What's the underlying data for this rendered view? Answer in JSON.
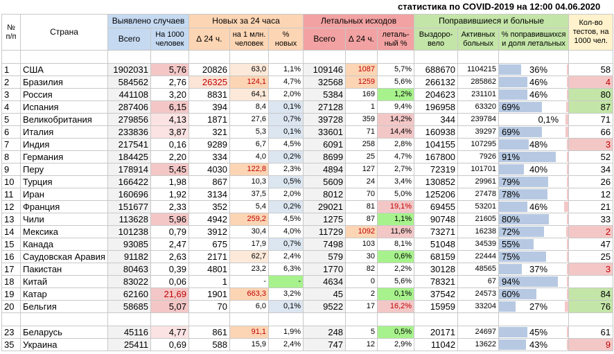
{
  "title": "статистика по COVID-2019 на 12:00 04.06.2020",
  "headers": {
    "no": "№ п/п",
    "country": "Страна",
    "detected": "Выявлено случаев",
    "detected_total": "Всего",
    "detected_per1000": "На 1000 человек",
    "new24": "Новых за 24 часа",
    "new_delta": "∆ 24 ч.",
    "new_per_mln": "на 1 млн. человек",
    "new_pct": "% новых",
    "deaths": "Летальных исходов",
    "deaths_total": "Всего",
    "deaths_delta": "∆ 24 ч.",
    "deaths_pct": "леталь-ный %",
    "recovered_group": "Поправившиеся и больные",
    "recovered": "Выздоро-вело",
    "active": "Активных больных",
    "recovered_pct": "% поправившихся и доля летальных",
    "tests": "Кол-во тестов, на 1000 чел."
  },
  "colors": {
    "detected_header": "#c5d9f1",
    "new_header": "#fcd5b4",
    "deaths_header": "#f2a2a2",
    "recovered_header": "#c4e5a8",
    "tests_header": "#fff2cc",
    "pink": "#f4c7c7",
    "green": "#c6efce",
    "bright_green": "#a7f28c",
    "blue_bar": "#b7c9e2"
  },
  "rows": [
    {
      "n": "1",
      "country": "США",
      "total": "1902031",
      "per1000": "5,76",
      "d24": "20826",
      "mln": "63,0",
      "pct": "1,1%",
      "deaths": "109146",
      "dd24": "1087",
      "lpct": "5,7%",
      "rec": "688670",
      "act": "1104215",
      "rpct": "36%",
      "rfrac": 0.36,
      "lfrac": 0.057,
      "tests": "58"
    },
    {
      "n": "2",
      "country": "Бразилия",
      "total": "584562",
      "per1000": "2,76",
      "d24": "26325",
      "mln": "124,1",
      "pct": "4,7%",
      "deaths": "32568",
      "dd24": "1259",
      "lpct": "5,6%",
      "rec": "266132",
      "act": "285862",
      "rpct": "46%",
      "rfrac": 0.46,
      "lfrac": 0.056,
      "tests": "4"
    },
    {
      "n": "3",
      "country": "Россия",
      "total": "441108",
      "per1000": "3,20",
      "d24": "8831",
      "mln": "64,1",
      "pct": "2,0%",
      "deaths": "5384",
      "dd24": "169",
      "lpct": "1,2%",
      "rec": "204623",
      "act": "231101",
      "rpct": "46%",
      "rfrac": 0.46,
      "lfrac": 0.012,
      "tests": "80"
    },
    {
      "n": "4",
      "country": "Испания",
      "total": "287406",
      "per1000": "6,15",
      "d24": "394",
      "mln": "8,4",
      "pct": "0,1%",
      "deaths": "27128",
      "dd24": "1",
      "lpct": "9,4%",
      "rec": "196958",
      "act": "63320",
      "rpct": "69%",
      "rfrac": 0.69,
      "lfrac": 0.094,
      "tests": "87"
    },
    {
      "n": "5",
      "country": "Великобритания",
      "total": "279856",
      "per1000": "4,13",
      "d24": "1871",
      "mln": "27,6",
      "pct": "0,7%",
      "deaths": "39728",
      "dd24": "359",
      "lpct": "14,2%",
      "rec": "344",
      "act": "239784",
      "rpct": "0,1%",
      "rfrac": 0.001,
      "lfrac": 0.142,
      "tests": "71"
    },
    {
      "n": "6",
      "country": "Италия",
      "total": "233836",
      "per1000": "3,87",
      "d24": "321",
      "mln": "5,3",
      "pct": "0,1%",
      "deaths": "33601",
      "dd24": "71",
      "lpct": "14,4%",
      "rec": "160938",
      "act": "39297",
      "rpct": "69%",
      "rfrac": 0.69,
      "lfrac": 0.144,
      "tests": "66"
    },
    {
      "n": "7",
      "country": "Индия",
      "total": "217541",
      "per1000": "0,16",
      "d24": "9289",
      "mln": "6,7",
      "pct": "4,5%",
      "deaths": "6091",
      "dd24": "258",
      "lpct": "2,8%",
      "rec": "104155",
      "act": "107295",
      "rpct": "48%",
      "rfrac": 0.48,
      "lfrac": 0.028,
      "tests": "3"
    },
    {
      "n": "8",
      "country": "Германия",
      "total": "184425",
      "per1000": "2,20",
      "d24": "334",
      "mln": "4,0",
      "pct": "0,2%",
      "deaths": "8699",
      "dd24": "25",
      "lpct": "4,7%",
      "rec": "167800",
      "act": "7926",
      "rpct": "91%",
      "rfrac": 0.91,
      "lfrac": 0.047,
      "tests": "52"
    },
    {
      "n": "9",
      "country": "Перу",
      "total": "178914",
      "per1000": "5,45",
      "d24": "4030",
      "mln": "122,8",
      "pct": "2,3%",
      "deaths": "4894",
      "dd24": "127",
      "lpct": "2,7%",
      "rec": "72319",
      "act": "101701",
      "rpct": "40%",
      "rfrac": 0.4,
      "lfrac": 0.027,
      "tests": "34"
    },
    {
      "n": "10",
      "country": "Турция",
      "total": "166422",
      "per1000": "1,98",
      "d24": "867",
      "mln": "10,3",
      "pct": "0,5%",
      "deaths": "5609",
      "dd24": "24",
      "lpct": "3,4%",
      "rec": "130852",
      "act": "29961",
      "rpct": "79%",
      "rfrac": 0.79,
      "lfrac": 0.034,
      "tests": "26"
    },
    {
      "n": "11",
      "country": "Иран",
      "total": "160696",
      "per1000": "1,92",
      "d24": "3134",
      "mln": "37,5",
      "pct": "2,0%",
      "deaths": "8012",
      "dd24": "70",
      "lpct": "5,0%",
      "rec": "125206",
      "act": "27478",
      "rpct": "78%",
      "rfrac": 0.78,
      "lfrac": 0.05,
      "tests": "12"
    },
    {
      "n": "12",
      "country": "Франция",
      "total": "151677",
      "per1000": "2,33",
      "d24": "352",
      "mln": "5,4",
      "pct": "0,2%",
      "deaths": "29021",
      "dd24": "81",
      "lpct": "19,1%",
      "rec": "69455",
      "act": "53201",
      "rpct": "46%",
      "rfrac": 0.46,
      "lfrac": 0.191,
      "tests": "21"
    },
    {
      "n": "13",
      "country": "Чили",
      "total": "113628",
      "per1000": "5,96",
      "d24": "4942",
      "mln": "259,2",
      "pct": "4,5%",
      "deaths": "1275",
      "dd24": "87",
      "lpct": "1,1%",
      "rec": "90748",
      "act": "21605",
      "rpct": "80%",
      "rfrac": 0.8,
      "lfrac": 0.011,
      "tests": "33"
    },
    {
      "n": "14",
      "country": "Мексика",
      "total": "101238",
      "per1000": "0,79",
      "d24": "3912",
      "mln": "30,4",
      "pct": "4,0%",
      "deaths": "11729",
      "dd24": "1092",
      "lpct": "11,6%",
      "rec": "73271",
      "act": "16238",
      "rpct": "72%",
      "rfrac": 0.72,
      "lfrac": 0.116,
      "tests": "2"
    },
    {
      "n": "15",
      "country": "Канада",
      "total": "93085",
      "per1000": "2,47",
      "d24": "675",
      "mln": "17,9",
      "pct": "0,7%",
      "deaths": "7498",
      "dd24": "103",
      "lpct": "8,1%",
      "rec": "51048",
      "act": "34539",
      "rpct": "55%",
      "rfrac": 0.55,
      "lfrac": 0.081,
      "tests": "47"
    },
    {
      "n": "16",
      "country": "Саудовская Аравия",
      "total": "91182",
      "per1000": "2,63",
      "d24": "2171",
      "mln": "62,7",
      "pct": "2,4%",
      "deaths": "579",
      "dd24": "30",
      "lpct": "0,6%",
      "rec": "68159",
      "act": "22444",
      "rpct": "75%",
      "rfrac": 0.75,
      "lfrac": 0.006,
      "tests": "25"
    },
    {
      "n": "17",
      "country": "Пакистан",
      "total": "80463",
      "per1000": "0,39",
      "d24": "4801",
      "mln": "23,2",
      "pct": "6,3%",
      "deaths": "1770",
      "dd24": "82",
      "lpct": "2,2%",
      "rec": "30128",
      "act": "48565",
      "rpct": "37%",
      "rfrac": 0.37,
      "lfrac": 0.022,
      "tests": "3"
    },
    {
      "n": "18",
      "country": "Китай",
      "total": "83022",
      "per1000": "0,06",
      "d24": "1",
      "mln": "-",
      "pct": "-",
      "deaths": "4634",
      "dd24": "0",
      "lpct": "5,6%",
      "rec": "78321",
      "act": "67",
      "rpct": "94%",
      "rfrac": 0.94,
      "lfrac": 0.056,
      "tests": ""
    },
    {
      "n": "19",
      "country": "Катар",
      "total": "62160",
      "per1000": "21,69",
      "d24": "1901",
      "mln": "663,3",
      "pct": "3,2%",
      "deaths": "45",
      "dd24": "2",
      "lpct": "0,1%",
      "rec": "37542",
      "act": "24573",
      "rpct": "60%",
      "rfrac": 0.6,
      "lfrac": 0.001,
      "tests": "84"
    },
    {
      "n": "20",
      "country": "Бельгия",
      "total": "58685",
      "per1000": "5,07",
      "d24": "70",
      "mln": "6,0",
      "pct": "0,1%",
      "deaths": "9522",
      "dd24": "17",
      "lpct": "16,2%",
      "rec": "15959",
      "act": "33204",
      "rpct": "27%",
      "rfrac": 0.27,
      "lfrac": 0.162,
      "tests": "76"
    }
  ],
  "extra_rows": [
    {
      "n": "23",
      "country": "Беларусь",
      "total": "45116",
      "per1000": "4,77",
      "d24": "861",
      "mln": "91,1",
      "pct": "1,9%",
      "deaths": "248",
      "dd24": "5",
      "lpct": "0,5%",
      "rec": "20171",
      "act": "24697",
      "rpct": "45%",
      "rfrac": 0.45,
      "lfrac": 0.005,
      "tests": "61"
    },
    {
      "n": "35",
      "country": "Украина",
      "total": "25411",
      "per1000": "0,69",
      "d24": "588",
      "mln": "15,9",
      "pct": "2,4%",
      "deaths": "747",
      "dd24": "12",
      "lpct": "2,9%",
      "rec": "11042",
      "act": "13622",
      "rpct": "43%",
      "rfrac": 0.43,
      "lfrac": 0.029,
      "tests": "9"
    }
  ]
}
